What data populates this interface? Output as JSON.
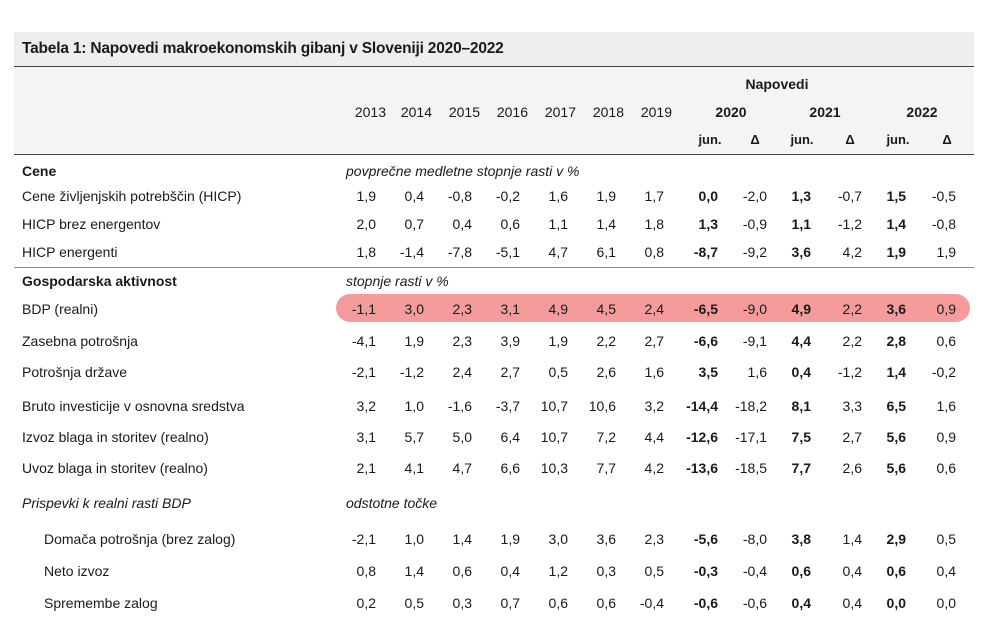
{
  "title": "Tabela 1: Napovedi makroekonomskih gibanj v Sloveniji 2020–2022",
  "header": {
    "napovedi": "Napovedi",
    "years": [
      "2013",
      "2014",
      "2015",
      "2016",
      "2017",
      "2018",
      "2019"
    ],
    "forecast_years": [
      "2020",
      "2021",
      "2022"
    ],
    "sub_labels": [
      "jun.",
      "Δ",
      "jun.",
      "Δ",
      "jun.",
      "Δ"
    ]
  },
  "rows": [
    {
      "type": "section",
      "label": "Cene",
      "note": "povprečne medletne stopnje rasti v %"
    },
    {
      "type": "data",
      "label": "Cene življenjskih potrebščin (HICP)",
      "values": [
        "1,9",
        "0,4",
        "-0,8",
        "-0,2",
        "1,6",
        "1,9",
        "1,7",
        "0,0",
        "-2,0",
        "1,3",
        "-0,7",
        "1,5",
        "-0,5"
      ]
    },
    {
      "type": "data",
      "label": "HICP brez energentov",
      "values": [
        "2,0",
        "0,7",
        "0,4",
        "0,6",
        "1,1",
        "1,4",
        "1,8",
        "1,3",
        "-0,9",
        "1,1",
        "-1,2",
        "1,4",
        "-0,8"
      ]
    },
    {
      "type": "data",
      "label": "HICP energenti",
      "values": [
        "1,8",
        "-1,4",
        "-7,8",
        "-5,1",
        "4,7",
        "6,1",
        "0,8",
        "-8,7",
        "-9,2",
        "3,6",
        "4,2",
        "1,9",
        "1,9"
      ]
    },
    {
      "type": "section",
      "label": "Gospodarska aktivnost",
      "note": "stopnje rasti v %"
    },
    {
      "type": "data",
      "label": "BDP (realni)",
      "highlight": true,
      "values": [
        "-1,1",
        "3,0",
        "2,3",
        "3,1",
        "4,9",
        "4,5",
        "2,4",
        "-6,5",
        "-9,0",
        "4,9",
        "2,2",
        "3,6",
        "0,9"
      ]
    },
    {
      "type": "data",
      "label": "Zasebna potrošnja",
      "values": [
        "-4,1",
        "1,9",
        "2,3",
        "3,9",
        "1,9",
        "2,2",
        "2,7",
        "-6,6",
        "-9,1",
        "4,4",
        "2,2",
        "2,8",
        "0,6"
      ]
    },
    {
      "type": "data",
      "label": "Potrošnja države",
      "values": [
        "-2,1",
        "-1,2",
        "2,4",
        "2,7",
        "0,5",
        "2,6",
        "1,6",
        "3,5",
        "1,6",
        "0,4",
        "-1,2",
        "1,4",
        "-0,2"
      ]
    },
    {
      "type": "data",
      "label": "Bruto investicije v osnovna sredstva",
      "values": [
        "3,2",
        "1,0",
        "-1,6",
        "-3,7",
        "10,7",
        "10,6",
        "3,2",
        "-14,4",
        "-18,2",
        "8,1",
        "3,3",
        "6,5",
        "1,6"
      ]
    },
    {
      "type": "data",
      "label": "Izvoz blaga in storitev (realno)",
      "values": [
        "3,1",
        "5,7",
        "5,0",
        "6,4",
        "10,7",
        "7,2",
        "4,4",
        "-12,6",
        "-17,1",
        "7,5",
        "2,7",
        "5,6",
        "0,9"
      ]
    },
    {
      "type": "data",
      "label": "Uvoz blaga in storitev (realno)",
      "values": [
        "2,1",
        "4,1",
        "4,7",
        "6,6",
        "10,3",
        "7,7",
        "4,2",
        "-13,6",
        "-18,5",
        "7,7",
        "2,6",
        "5,6",
        "0,6"
      ]
    },
    {
      "type": "section-italic",
      "label": "Prispevki k realni rasti BDP",
      "note": "odstotne točke"
    },
    {
      "type": "data",
      "indent": true,
      "label": "Domača potrošnja (brez zalog)",
      "values": [
        "-2,1",
        "1,0",
        "1,4",
        "1,9",
        "3,0",
        "3,6",
        "2,3",
        "-5,6",
        "-8,0",
        "3,8",
        "1,4",
        "2,9",
        "0,5"
      ]
    },
    {
      "type": "data",
      "indent": true,
      "label": "Neto izvoz",
      "values": [
        "0,8",
        "1,4",
        "0,6",
        "0,4",
        "1,2",
        "0,3",
        "0,5",
        "-0,3",
        "-0,4",
        "0,6",
        "0,4",
        "0,6",
        "0,4"
      ]
    },
    {
      "type": "data",
      "indent": true,
      "label": "Spremembe zalog",
      "values": [
        "0,2",
        "0,5",
        "0,3",
        "0,7",
        "0,6",
        "0,6",
        "-0,4",
        "-0,6",
        "-0,6",
        "0,4",
        "0,4",
        "0,0",
        "0,0"
      ]
    }
  ]
}
